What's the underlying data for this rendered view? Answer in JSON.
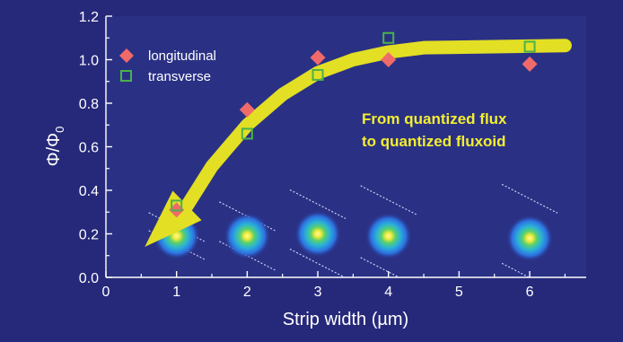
{
  "chart_data": {
    "type": "scatter",
    "xlabel": "Strip width (µm)",
    "ylabel_main": "Φ/Φ",
    "ylabel_sub": "0",
    "xlim": [
      0,
      6.8
    ],
    "ylim": [
      0.0,
      1.2
    ],
    "x_ticks": [
      "0",
      "1",
      "2",
      "3",
      "4",
      "5",
      "6"
    ],
    "y_ticks": [
      "0.0",
      "0.2",
      "0.4",
      "0.6",
      "0.8",
      "1.0",
      "1.2"
    ],
    "grid": false,
    "legend_position": "top-left",
    "series": [
      {
        "name": "longitudinal",
        "marker": "diamond",
        "color": "#f06a6a",
        "x": [
          1,
          2,
          3,
          4,
          6
        ],
        "y": [
          0.31,
          0.77,
          1.01,
          1.0,
          0.98
        ]
      },
      {
        "name": "transverse",
        "marker": "open-square",
        "color": "#49b34a",
        "x": [
          1,
          2,
          3,
          4,
          6
        ],
        "y": [
          0.33,
          0.66,
          0.93,
          1.1,
          1.06
        ]
      }
    ],
    "annotation": {
      "line1": "From quantized flux",
      "line2": "to quantized fluxoid",
      "color": "#f4ee2f"
    },
    "trend_arrow": {
      "color": "#e2df24",
      "x": [
        6.5,
        5.5,
        4.5,
        4.0,
        3.5,
        3.0,
        2.5,
        2.0,
        1.5,
        1.15
      ],
      "y": [
        1.065,
        1.06,
        1.055,
        1.035,
        1.0,
        0.94,
        0.84,
        0.7,
        0.51,
        0.33
      ],
      "head_tip": {
        "x": 0.55,
        "y": 0.14
      }
    },
    "vortex_images": {
      "x": [
        1,
        2,
        3,
        4,
        6
      ],
      "y": [
        0.19,
        0.19,
        0.2,
        0.19,
        0.18
      ]
    }
  },
  "colors": {
    "plot_background": "#2a3185",
    "frame_background": "#26297a",
    "axis": "#ffffff"
  }
}
